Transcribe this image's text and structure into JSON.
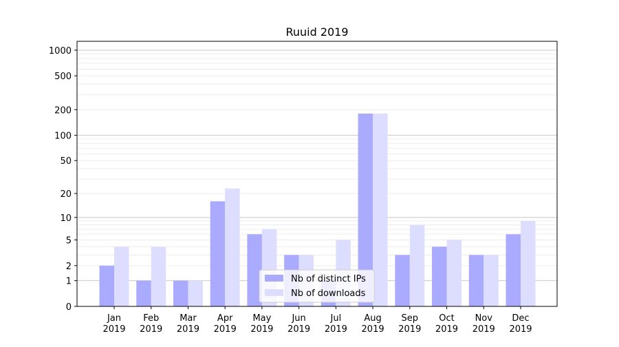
{
  "chart_data": {
    "type": "bar",
    "title": "Ruuid 2019",
    "xlabel": "",
    "ylabel": "",
    "yscale": "log(1+y)",
    "ylim": [
      0,
      1270
    ],
    "grid": true,
    "legend_position": "bottom-center",
    "categories": [
      "Jan\n2019",
      "Feb\n2019",
      "Mar\n2019",
      "Apr\n2019",
      "May\n2019",
      "Jun\n2019",
      "Jul\n2019",
      "Aug\n2019",
      "Sep\n2019",
      "Oct\n2019",
      "Nov\n2019",
      "Dec\n2019"
    ],
    "yticks": [
      0,
      1,
      2,
      5,
      10,
      20,
      50,
      100,
      200,
      500,
      1000
    ],
    "series": [
      {
        "name": "Nb of distinct IPs",
        "color": "#aaaaff",
        "values": [
          2,
          1,
          1,
          16,
          6,
          3,
          1,
          180,
          3,
          4,
          3,
          6
        ]
      },
      {
        "name": "Nb of downloads",
        "color": "#ddddff",
        "values": [
          4,
          4,
          1,
          23,
          7,
          3,
          5,
          180,
          8,
          5,
          3,
          9
        ]
      }
    ]
  }
}
